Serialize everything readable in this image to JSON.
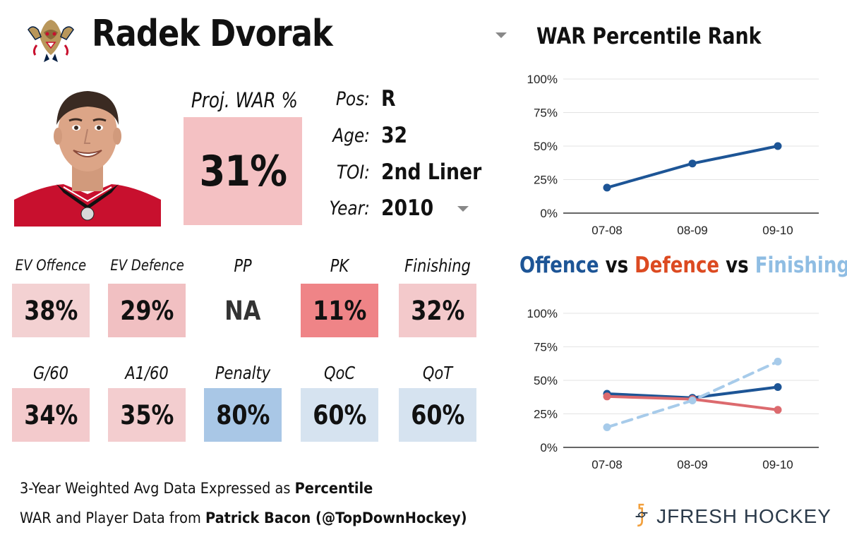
{
  "header": {
    "player_name": "Radek Dvorak",
    "logo_icon": "panther-logo-icon"
  },
  "projection": {
    "label": "Proj. WAR %",
    "value": "31%",
    "color": "#f4c1c3"
  },
  "info": [
    {
      "label": "Pos:",
      "value": "R"
    },
    {
      "label": "Age:",
      "value": "32"
    },
    {
      "label": "TOI:",
      "value": "2nd Liner"
    },
    {
      "label": "Year:",
      "value": "2010"
    }
  ],
  "stats_row1": [
    {
      "label": "EV Offence",
      "value": "38%",
      "color": "#f3d1d2"
    },
    {
      "label": "EV Defence",
      "value": "29%",
      "color": "#f1c0c2"
    },
    {
      "label": "PP",
      "value": "NA",
      "color": "#ffffff"
    },
    {
      "label": "PK",
      "value": "11%",
      "color": "#ef8487"
    },
    {
      "label": "Finishing",
      "value": "32%",
      "color": "#f3c9cb"
    }
  ],
  "stats_row2": [
    {
      "label": "G/60",
      "value": "34%",
      "color": "#f3cacc"
    },
    {
      "label": "A1/60",
      "value": "35%",
      "color": "#f3cdcf"
    },
    {
      "label": "Penalty",
      "value": "80%",
      "color": "#a9c7e6"
    },
    {
      "label": "QoC",
      "value": "60%",
      "color": "#d6e3f0"
    },
    {
      "label": "QoT",
      "value": "60%",
      "color": "#d6e3f0"
    }
  ],
  "footer": {
    "line1_prefix": "3-Year Weighted Avg Data Expressed as ",
    "line1_bold": "Percentile",
    "line2_prefix": "WAR and Player Data from ",
    "line2_bold": "Patrick Bacon (@TopDownHockey)",
    "brand": "JFRESH HOCKEY"
  },
  "chart_data": [
    {
      "type": "line",
      "title": "WAR Percentile Rank",
      "categories": [
        "07-08",
        "08-09",
        "09-10"
      ],
      "yticks": [
        "0%",
        "25%",
        "50%",
        "75%",
        "100%"
      ],
      "ylim": [
        0,
        100
      ],
      "grid": true,
      "series": [
        {
          "values": [
            19,
            37,
            50
          ],
          "color": "#1d5596",
          "dashed": false
        }
      ]
    },
    {
      "type": "line",
      "title_parts": [
        "Offence",
        "vs",
        "Defence",
        "vs",
        "Finishing"
      ],
      "categories": [
        "07-08",
        "08-09",
        "09-10"
      ],
      "yticks": [
        "0%",
        "25%",
        "50%",
        "75%",
        "100%"
      ],
      "ylim": [
        0,
        100
      ],
      "grid": true,
      "series": [
        {
          "name": "Offence",
          "values": [
            40,
            37,
            45
          ],
          "color": "#1d5596",
          "dashed": false
        },
        {
          "name": "Defence",
          "values": [
            38,
            36,
            28
          ],
          "color": "#dc6a6e",
          "dashed": false
        },
        {
          "name": "Finishing",
          "values": [
            15,
            35,
            64
          ],
          "color": "#a7cbea",
          "dashed": true
        }
      ]
    }
  ]
}
